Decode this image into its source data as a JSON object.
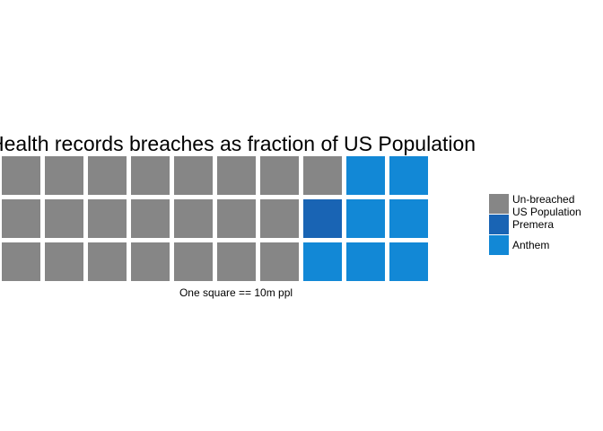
{
  "chart_data": {
    "type": "waffle",
    "title": "Health records breaches as fraction of US Population",
    "caption": "One square == 10m ppl",
    "rows": 3,
    "columns": 10,
    "series": [
      {
        "name": "Un-breached\nUS Population",
        "value": 22,
        "color": "#868686"
      },
      {
        "name": "Premera",
        "value": 1,
        "color": "#1964b4"
      },
      {
        "name": "Anthem",
        "value": 7,
        "color": "#1288d6"
      }
    ],
    "legend_position": "right"
  }
}
